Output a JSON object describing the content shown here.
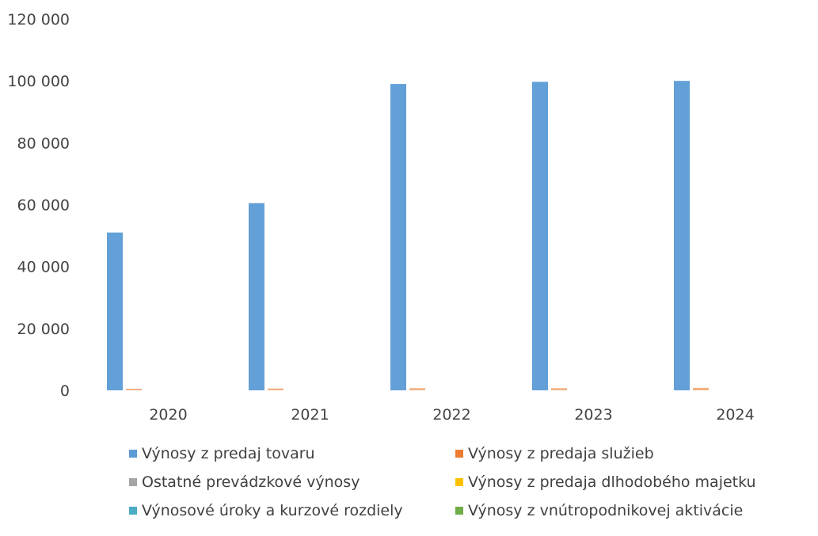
{
  "chart_data": {
    "type": "bar",
    "categories": [
      "2020",
      "2021",
      "2022",
      "2023",
      "2024"
    ],
    "ylim": [
      0,
      120000
    ],
    "yticks": [
      0,
      20000,
      40000,
      60000,
      80000,
      100000,
      120000
    ],
    "ytick_labels": [
      "0",
      "20 000",
      "40 000",
      "60 000",
      "80 000",
      "100 000",
      "120 000"
    ],
    "grid": false,
    "legend_position": "bottom",
    "series": [
      {
        "name": "Výnosy z predaj tovaru",
        "color": "#5b9bd5",
        "values": [
          51000,
          60500,
          99000,
          99700,
          100000
        ]
      },
      {
        "name": "Výnosy z predaja služieb",
        "color": "#ed7d31",
        "values": [
          500,
          600,
          700,
          700,
          800
        ]
      },
      {
        "name": "Ostatné prevádzkové výnosy",
        "color": "#a5a5a5",
        "values": [
          0,
          0,
          0,
          0,
          0
        ]
      },
      {
        "name": "Výnosy z predaja dlhodobého majetku",
        "color": "#ffc000",
        "values": [
          0,
          0,
          0,
          0,
          0
        ]
      },
      {
        "name": "Výnosové úroky a kurzové rozdiely",
        "color": "#4bacc6",
        "values": [
          0,
          0,
          0,
          0,
          0
        ]
      },
      {
        "name": "Výnosy z vnútropodnikovej aktivácie",
        "color": "#70ad47",
        "values": [
          0,
          0,
          0,
          0,
          0
        ]
      }
    ]
  }
}
